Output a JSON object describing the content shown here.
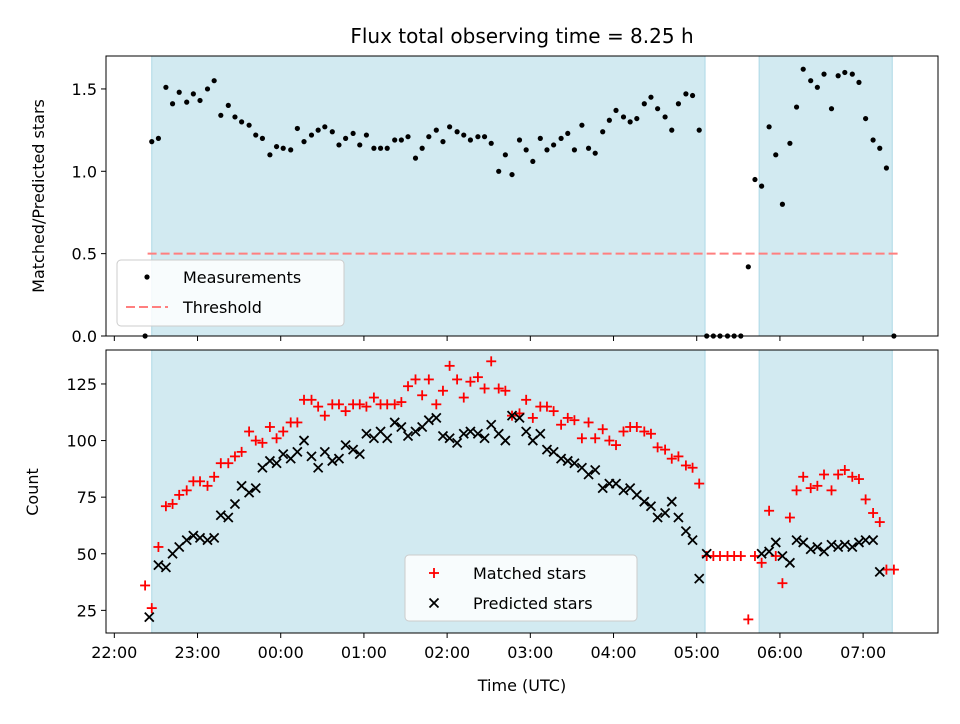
{
  "title": "Flux total observing time = 8.25 h",
  "colors": {
    "shade": "#add8e6",
    "measurements": "#000000",
    "threshold": "#ff7f7f",
    "matched": "#ff0000",
    "predicted": "#000000"
  },
  "chart_data": [
    {
      "type": "scatter",
      "panel": "top",
      "ylabel": "Matched/Predicted stars",
      "xlim_hours": [
        -2.1,
        7.9
      ],
      "ylim": [
        0,
        1.7
      ],
      "yticks": [
        0,
        0.5,
        1.0,
        1.5
      ],
      "ytick_labels": [
        "0.0",
        "0.5",
        "1.0",
        "1.5"
      ],
      "shaded_intervals_hours": [
        [
          -1.55,
          5.1
        ],
        [
          5.75,
          7.35
        ]
      ],
      "legend": {
        "position": "lower-left",
        "entries": [
          "Measurements",
          "Threshold"
        ]
      },
      "threshold": {
        "name": "Threshold",
        "y": 0.5,
        "x_range_hours": [
          -1.6,
          7.45
        ]
      },
      "series": [
        {
          "name": "Measurements",
          "x_hours": [
            -1.63,
            -1.55,
            -1.47,
            -1.38,
            -1.3,
            -1.22,
            -1.13,
            -1.05,
            -0.97,
            -0.88,
            -0.8,
            -0.72,
            -0.63,
            -0.55,
            -0.47,
            -0.38,
            -0.3,
            -0.22,
            -0.13,
            -0.05,
            0.03,
            0.12,
            0.2,
            0.28,
            0.37,
            0.45,
            0.53,
            0.62,
            0.7,
            0.78,
            0.87,
            0.95,
            1.03,
            1.12,
            1.2,
            1.28,
            1.37,
            1.45,
            1.53,
            1.62,
            1.7,
            1.78,
            1.87,
            1.95,
            2.03,
            2.12,
            2.2,
            2.28,
            2.37,
            2.45,
            2.53,
            2.62,
            2.7,
            2.78,
            2.87,
            2.95,
            3.03,
            3.12,
            3.2,
            3.28,
            3.37,
            3.45,
            3.53,
            3.62,
            3.7,
            3.78,
            3.87,
            3.95,
            4.03,
            4.12,
            4.2,
            4.28,
            4.37,
            4.45,
            4.53,
            4.62,
            4.7,
            4.78,
            4.87,
            4.95,
            5.03,
            5.12,
            5.2,
            5.28,
            5.37,
            5.45,
            5.53,
            5.62,
            5.7,
            5.78,
            5.87,
            5.95,
            6.03,
            6.12,
            6.2,
            6.28,
            6.37,
            6.45,
            6.53,
            6.62,
            6.7,
            6.78,
            6.87,
            6.95,
            7.03,
            7.12,
            7.2,
            7.28,
            7.37,
            7.45
          ],
          "y": [
            0.0,
            1.18,
            1.2,
            1.51,
            1.41,
            1.48,
            1.42,
            1.47,
            1.43,
            1.5,
            1.55,
            1.34,
            1.4,
            1.33,
            1.3,
            1.28,
            1.22,
            1.2,
            1.1,
            1.15,
            1.14,
            1.13,
            1.26,
            1.18,
            1.22,
            1.25,
            1.27,
            1.24,
            1.16,
            1.2,
            1.23,
            1.16,
            1.22,
            1.14,
            1.14,
            1.14,
            1.19,
            1.19,
            1.21,
            1.08,
            1.14,
            1.21,
            1.25,
            1.18,
            1.27,
            1.24,
            1.22,
            1.19,
            1.21,
            1.21,
            1.17,
            1.0,
            1.1,
            0.98,
            1.19,
            1.13,
            1.06,
            1.2,
            1.13,
            1.16,
            1.2,
            1.23,
            1.13,
            1.28,
            1.14,
            1.11,
            1.24,
            1.31,
            1.37,
            1.33,
            1.3,
            1.32,
            1.41,
            1.45,
            1.38,
            1.33,
            1.25,
            1.41,
            1.47,
            1.46,
            1.25,
            0.0,
            0.0,
            0.0,
            0.0,
            0.0,
            0.0,
            0.42,
            0.95,
            0.91,
            1.27,
            1.1,
            0.8,
            1.17,
            1.39,
            1.62,
            1.55,
            1.51,
            1.59,
            1.38,
            1.58,
            1.6,
            1.59,
            1.54,
            1.32,
            1.19,
            1.14,
            1.02,
            0.0,
            null
          ]
        }
      ]
    },
    {
      "type": "scatter",
      "panel": "bottom",
      "xlabel": "Time (UTC)",
      "ylabel": "Count",
      "xlim_hours": [
        -2.1,
        7.9
      ],
      "ylim": [
        15,
        140
      ],
      "yticks": [
        25,
        50,
        75,
        100,
        125
      ],
      "ytick_labels": [
        "25",
        "50",
        "75",
        "100",
        "125"
      ],
      "xticks_hours": [
        -2,
        -1,
        0,
        1,
        2,
        3,
        4,
        5,
        6,
        7
      ],
      "xtick_labels": [
        "22:00",
        "23:00",
        "00:00",
        "01:00",
        "02:00",
        "03:00",
        "04:00",
        "05:00",
        "06:00",
        "07:00"
      ],
      "shaded_intervals_hours": [
        [
          -1.55,
          5.1
        ],
        [
          5.75,
          7.35
        ]
      ],
      "legend": {
        "position": "bottom-center",
        "entries": [
          "Matched stars",
          "Predicted stars"
        ]
      },
      "series": [
        {
          "name": "Matched stars",
          "marker": "plus",
          "x_hours": [
            -1.63,
            -1.55,
            -1.47,
            -1.38,
            -1.3,
            -1.22,
            -1.13,
            -1.05,
            -0.97,
            -0.88,
            -0.8,
            -0.72,
            -0.63,
            -0.55,
            -0.47,
            -0.38,
            -0.3,
            -0.22,
            -0.13,
            -0.05,
            0.03,
            0.12,
            0.2,
            0.28,
            0.37,
            0.45,
            0.53,
            0.62,
            0.7,
            0.78,
            0.87,
            0.95,
            1.03,
            1.12,
            1.2,
            1.28,
            1.37,
            1.45,
            1.53,
            1.62,
            1.7,
            1.78,
            1.87,
            1.95,
            2.03,
            2.12,
            2.2,
            2.28,
            2.37,
            2.45,
            2.53,
            2.62,
            2.7,
            2.78,
            2.87,
            2.95,
            3.03,
            3.12,
            3.2,
            3.28,
            3.37,
            3.45,
            3.53,
            3.62,
            3.7,
            3.78,
            3.87,
            3.95,
            4.03,
            4.12,
            4.2,
            4.28,
            4.37,
            4.45,
            4.53,
            4.62,
            4.7,
            4.78,
            4.87,
            4.95,
            5.03,
            5.12,
            5.2,
            5.28,
            5.37,
            5.45,
            5.53,
            5.62,
            5.7,
            5.78,
            5.87,
            5.95,
            6.03,
            6.12,
            6.2,
            6.28,
            6.37,
            6.45,
            6.53,
            6.62,
            6.7,
            6.78,
            6.87,
            6.95,
            7.03,
            7.12,
            7.2,
            7.28,
            7.37,
            7.45
          ],
          "y": [
            36,
            26,
            53,
            71,
            72,
            76,
            78,
            82,
            82,
            80,
            84,
            90,
            90,
            93,
            95,
            104,
            100,
            99,
            106,
            101,
            104,
            108,
            108,
            118,
            118,
            115,
            111,
            116,
            116,
            113,
            116,
            116,
            115,
            119,
            116,
            116,
            116,
            117,
            124,
            127,
            120,
            127,
            116,
            122,
            133,
            127,
            119,
            126,
            128,
            123,
            135,
            123,
            122,
            111,
            112,
            118,
            110,
            115,
            115,
            113,
            107,
            110,
            109,
            101,
            108,
            101,
            105,
            100,
            98,
            104,
            106,
            106,
            104,
            103,
            97,
            96,
            92,
            93,
            89,
            88,
            81,
            49,
            49,
            49,
            49,
            49,
            49,
            21,
            49,
            46,
            69,
            49,
            37,
            66,
            78,
            84,
            79,
            80,
            85,
            78,
            85,
            87,
            84,
            83,
            74,
            68,
            64,
            43,
            43,
            null
          ],
          "x_adjust": "plotted with matching time axis"
        },
        {
          "name": "Predicted stars",
          "marker": "x",
          "x_hours": [
            -1.58,
            -1.47,
            -1.38,
            -1.3,
            -1.22,
            -1.13,
            -1.05,
            -0.97,
            -0.88,
            -0.8,
            -0.72,
            -0.63,
            -0.55,
            -0.47,
            -0.38,
            -0.3,
            -0.22,
            -0.13,
            -0.05,
            0.03,
            0.12,
            0.2,
            0.28,
            0.37,
            0.45,
            0.53,
            0.62,
            0.7,
            0.78,
            0.87,
            0.95,
            1.03,
            1.12,
            1.2,
            1.28,
            1.37,
            1.45,
            1.53,
            1.62,
            1.7,
            1.78,
            1.87,
            1.95,
            2.03,
            2.12,
            2.2,
            2.28,
            2.37,
            2.45,
            2.53,
            2.62,
            2.7,
            2.78,
            2.87,
            2.95,
            3.03,
            3.12,
            3.2,
            3.28,
            3.37,
            3.45,
            3.53,
            3.62,
            3.7,
            3.78,
            3.87,
            3.95,
            4.03,
            4.12,
            4.2,
            4.28,
            4.37,
            4.45,
            4.53,
            4.62,
            4.7,
            4.78,
            4.87,
            4.95,
            5.03,
            5.12,
            5.78,
            5.87,
            5.95,
            6.03,
            6.12,
            6.2,
            6.28,
            6.37,
            6.45,
            6.53,
            6.62,
            6.7,
            6.78,
            6.87,
            6.95,
            7.03,
            7.12,
            7.2,
            7.28,
            7.37
          ],
          "y": [
            22,
            45,
            44,
            50,
            53,
            56,
            58,
            57,
            56,
            57,
            67,
            66,
            72,
            80,
            77,
            79,
            88,
            91,
            90,
            94,
            92,
            95,
            100,
            93,
            88,
            95,
            91,
            92,
            98,
            96,
            94,
            103,
            101,
            104,
            101,
            108,
            106,
            102,
            104,
            106,
            109,
            110,
            102,
            101,
            99,
            103,
            104,
            103,
            101,
            107,
            103,
            100,
            111,
            110,
            104,
            100,
            103,
            96,
            95,
            92,
            91,
            90,
            88,
            85,
            87,
            79,
            81,
            81,
            78,
            79,
            76,
            73,
            71,
            66,
            68,
            73,
            66,
            60,
            56,
            39,
            50,
            50,
            51,
            55,
            49,
            46,
            56,
            55,
            52,
            53,
            51,
            54,
            53,
            54,
            53,
            55,
            56,
            56,
            42,
            null,
            null
          ]
        }
      ]
    }
  ]
}
